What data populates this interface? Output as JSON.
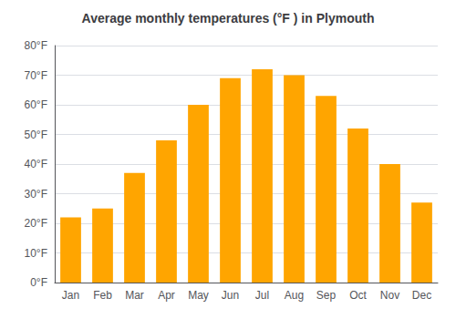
{
  "chart_data": {
    "type": "bar",
    "title": "Average monthly temperatures (°F ) in Plymouth",
    "categories": [
      "Jan",
      "Feb",
      "Mar",
      "Apr",
      "May",
      "Jun",
      "Jul",
      "Aug",
      "Sep",
      "Oct",
      "Nov",
      "Dec"
    ],
    "values": [
      22,
      25,
      37,
      48,
      60,
      69,
      72,
      70,
      63,
      52,
      40,
      27
    ],
    "color": "#FFA500",
    "ylim": [
      0,
      80
    ],
    "yticks": [
      {
        "value": 0,
        "label": "0°F"
      },
      {
        "value": 10,
        "label": "10°F"
      },
      {
        "value": 20,
        "label": "20°F"
      },
      {
        "value": 30,
        "label": "30°F"
      },
      {
        "value": 40,
        "label": "40°F"
      },
      {
        "value": 50,
        "label": "50°F"
      },
      {
        "value": 60,
        "label": "60°F"
      },
      {
        "value": 70,
        "label": "70°F"
      },
      {
        "value": 80,
        "label": "80°F"
      }
    ],
    "grid": true
  }
}
